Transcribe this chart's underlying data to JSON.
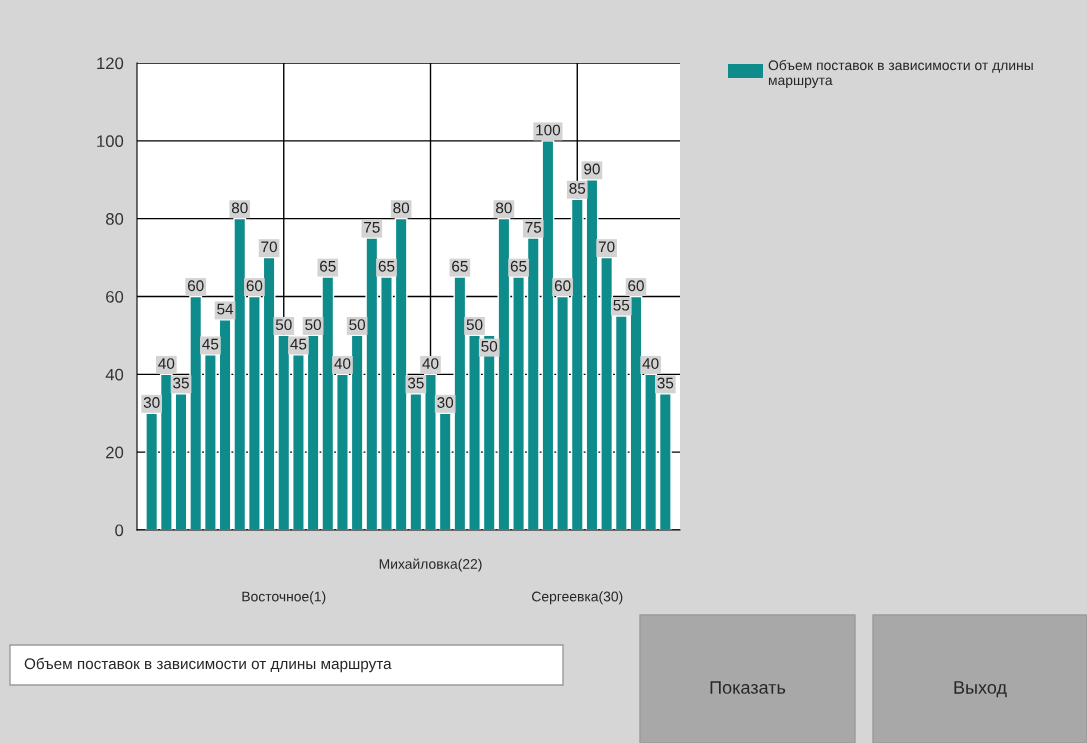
{
  "chart_data": {
    "type": "bar",
    "categories": [
      null,
      null,
      null,
      null,
      null,
      null,
      null,
      null,
      null,
      "Восточное(1)",
      null,
      null,
      null,
      null,
      null,
      null,
      null,
      null,
      null,
      "Михайловка(22)",
      null,
      null,
      null,
      null,
      null,
      null,
      null,
      null,
      null,
      "Сергеевка(30)",
      null,
      null,
      null,
      null,
      null,
      null
    ],
    "series": [
      {
        "name": "Объем поставок в зависимости от длины маршрута",
        "color": "#0e8c8c",
        "values": [
          30,
          40,
          35,
          60,
          45,
          54,
          80,
          60,
          70,
          50,
          45,
          50,
          65,
          40,
          50,
          75,
          65,
          80,
          35,
          40,
          30,
          65,
          50,
          50,
          80,
          65,
          75,
          100,
          60,
          85,
          90,
          70,
          55,
          60,
          40,
          35
        ]
      }
    ],
    "ylim": [
      0,
      120
    ],
    "yticks": [
      0,
      20,
      40,
      60,
      80,
      100,
      120
    ],
    "grid": true,
    "legend": "top right",
    "data_labels": true,
    "annotations": [
      "Объем поставок в зависимости от длины маршрута",
      "Показать",
      "Выход"
    ]
  }
}
